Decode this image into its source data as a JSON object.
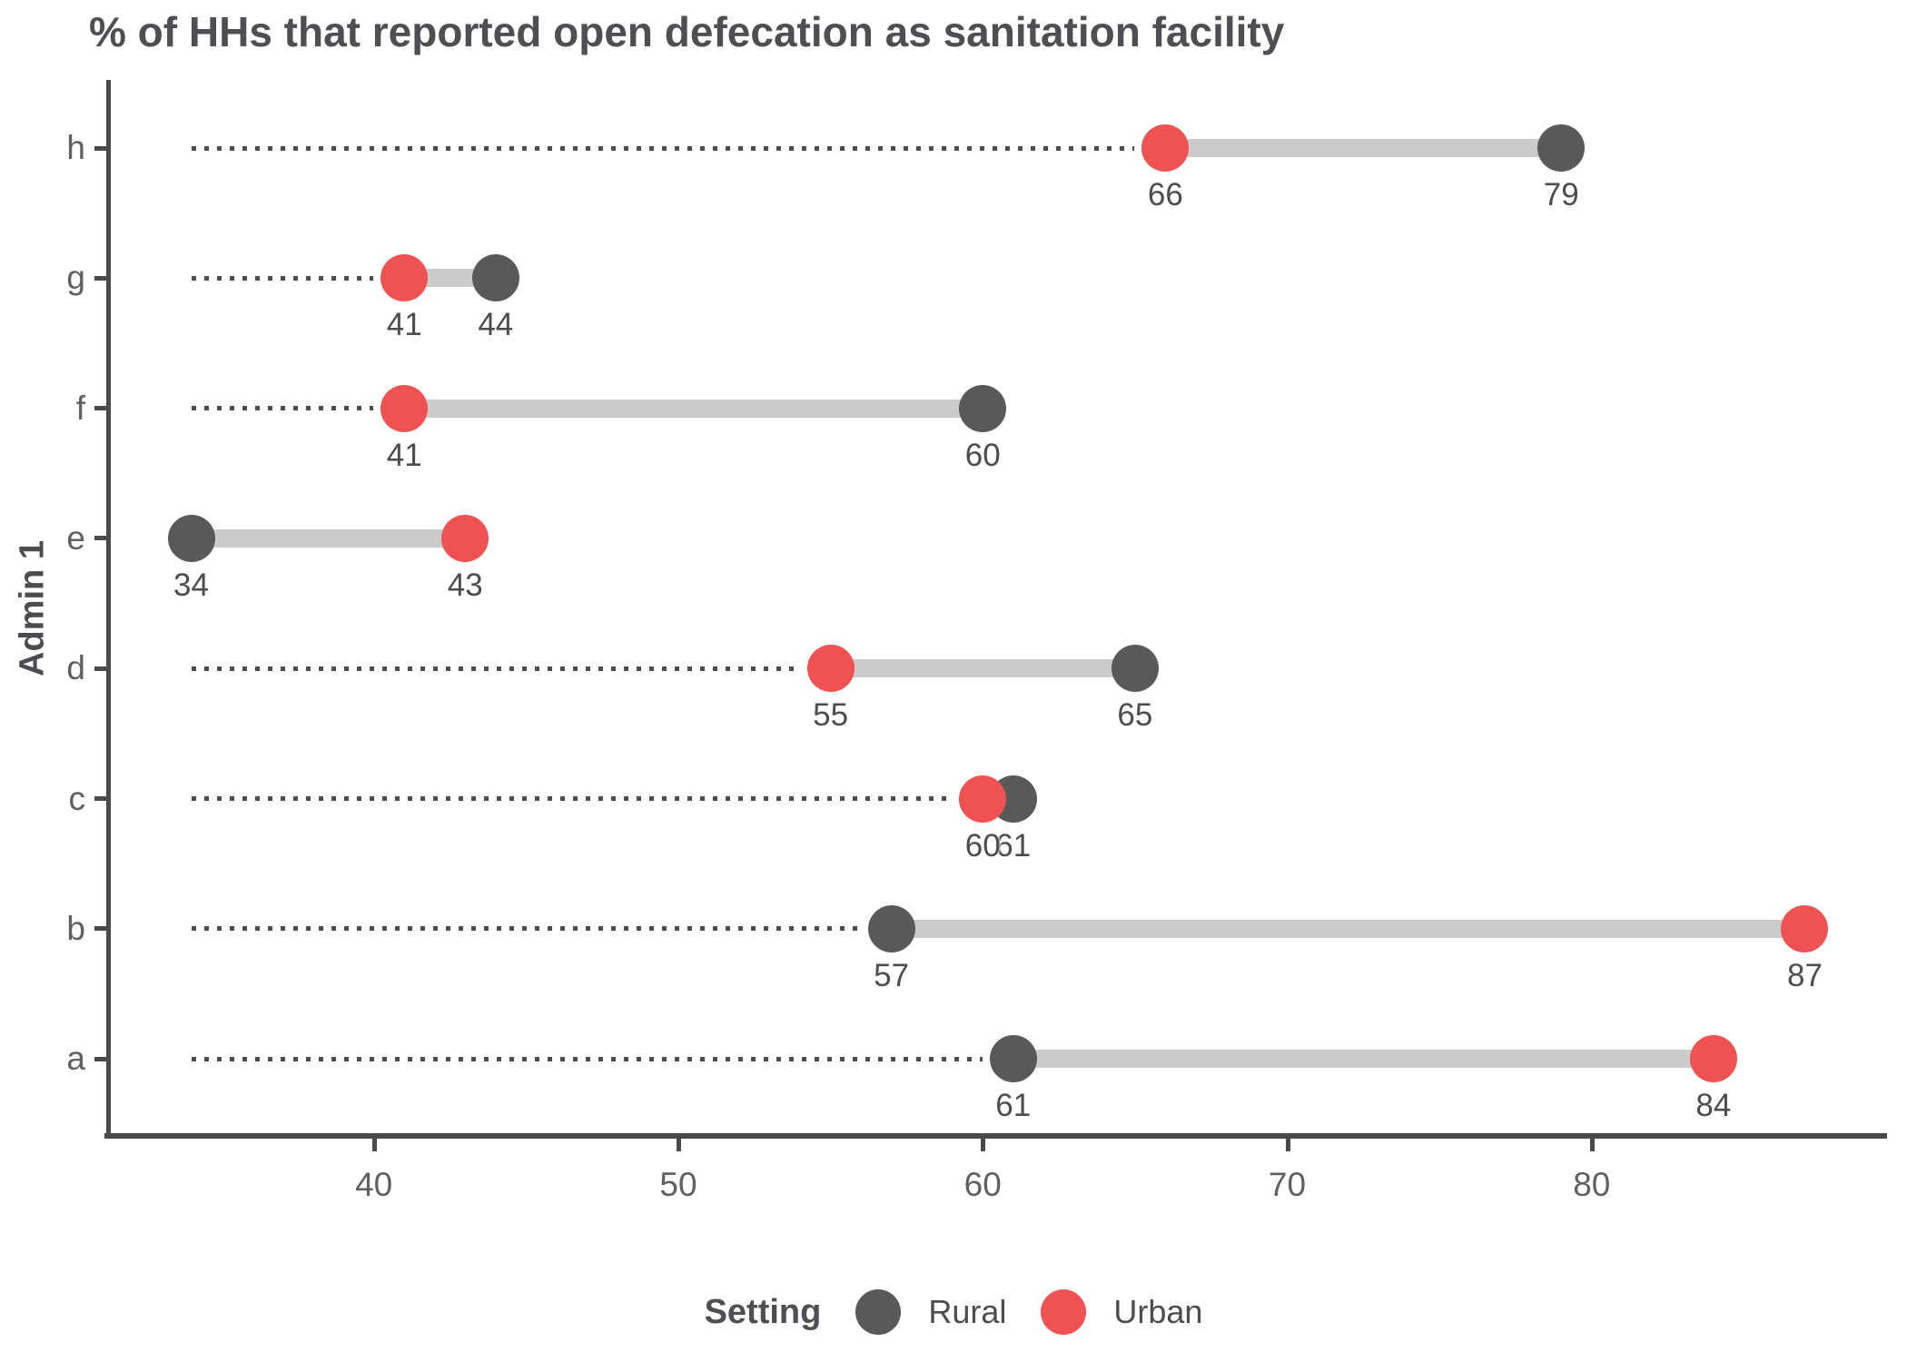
{
  "title": "% of HHs that reported open defecation as sanitation facility",
  "ylabel": "Admin 1",
  "legend": {
    "title": "Setting",
    "items": [
      {
        "label": "Rural",
        "color": "#595959"
      },
      {
        "label": "Urban",
        "color": "#ee5253"
      }
    ]
  },
  "colors": {
    "rural": "#595959",
    "urban": "#ee5253",
    "range_bar": "#cbcbcb",
    "leader_dots": "#4d4d4d",
    "axis": "#4a4a4a",
    "tick_text": "#5e6063",
    "value_text": "#4d4d4d",
    "title_text": "#4d4f53"
  },
  "chart_data": {
    "type": "dumbbell",
    "title": "% of HHs that reported open defecation as sanitation facility",
    "xlabel": "",
    "ylabel": "Admin 1",
    "categories": [
      "h",
      "g",
      "f",
      "e",
      "d",
      "c",
      "b",
      "a"
    ],
    "series": [
      {
        "name": "Rural",
        "color": "#595959",
        "values": [
          79,
          44,
          60,
          34,
          65,
          61,
          57,
          61
        ]
      },
      {
        "name": "Urban",
        "color": "#ee5253",
        "values": [
          66,
          41,
          41,
          43,
          55,
          60,
          87,
          84
        ]
      }
    ],
    "value_labels_shown": true,
    "xticks": [
      40,
      50,
      60,
      70,
      80
    ],
    "xlim": [
      31.3,
      89.7
    ],
    "leader_line_start": 34,
    "grid": "off",
    "legend_position": "bottom"
  }
}
